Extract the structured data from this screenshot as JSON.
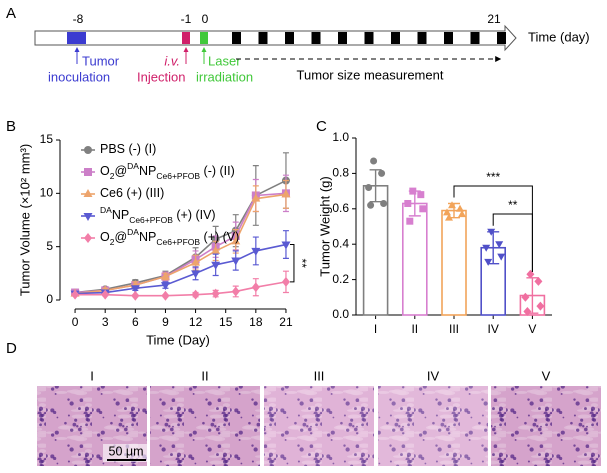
{
  "panel_labels": [
    "A",
    "B",
    "C",
    "D"
  ],
  "timeline": {
    "days": [
      "-8",
      "-1",
      "0",
      "21"
    ],
    "axis_title": "Time (day)",
    "events": [
      {
        "lines": [
          "Tumor",
          "inoculation"
        ]
      },
      {
        "lines": [
          "i.v.",
          "Injection"
        ]
      },
      {
        "lines": [
          "Laser",
          "irradiation"
        ]
      }
    ],
    "measurement": "Tumor size measurement"
  },
  "chart_data": [
    {
      "type": "line",
      "xlabel": "Time (Day)",
      "ylabel": "Tumor Volume (×10² mm³)",
      "x": [
        0,
        3,
        6,
        9,
        12,
        14,
        16,
        18,
        21
      ],
      "xlim": [
        -1.5,
        22
      ],
      "xticks": [
        0,
        3,
        6,
        9,
        12,
        15,
        18,
        21
      ],
      "ylim": [
        0,
        15
      ],
      "yticks": [
        0,
        5,
        10,
        15
      ],
      "series": [
        {
          "name": "PBS (-) (I)",
          "color": "#808080",
          "marker": "circle",
          "values": [
            0.7,
            1.0,
            1.6,
            2.3,
            4.0,
            5.7,
            6.5,
            9.8,
            11.2
          ],
          "errors": [
            0.2,
            0.2,
            0.3,
            0.4,
            0.9,
            1.2,
            1.5,
            2.8,
            2.6
          ]
        },
        {
          "name": "O2@DANPCe6+PFOB (-) (II)",
          "color": "#cc7fc8",
          "marker": "square",
          "values": [
            0.7,
            0.9,
            1.4,
            2.2,
            3.8,
            5.0,
            6.0,
            9.8,
            10.0
          ],
          "errors": [
            0.1,
            0.2,
            0.3,
            0.4,
            0.8,
            1.0,
            1.3,
            1.5,
            1.7
          ]
        },
        {
          "name": "Ce6 (+) (III)",
          "color": "#eda46c",
          "marker": "triangle",
          "values": [
            0.6,
            0.9,
            1.4,
            2.2,
            3.5,
            4.6,
            5.5,
            9.5,
            9.9
          ],
          "errors": [
            0.1,
            0.2,
            0.3,
            0.3,
            0.7,
            0.9,
            1.1,
            1.2,
            1.3
          ]
        },
        {
          "name": "DANPCe6+PFOB (+) (IV)",
          "color": "#5a5ad2",
          "marker": "triangle-down",
          "values": [
            0.6,
            0.7,
            1.1,
            1.4,
            2.5,
            3.3,
            3.7,
            4.6,
            5.2
          ],
          "errors": [
            0.1,
            0.2,
            0.2,
            0.3,
            0.6,
            1.0,
            0.9,
            1.3,
            1.3
          ]
        },
        {
          "name": "O2@DANPCe6+PFOB (+) (V)",
          "color": "#f27ea8",
          "marker": "diamond",
          "values": [
            0.5,
            0.5,
            0.4,
            0.4,
            0.5,
            0.6,
            0.8,
            1.2,
            1.7
          ],
          "errors": [
            0.1,
            0.1,
            0.1,
            0.1,
            0.2,
            0.3,
            0.5,
            0.8,
            1.0
          ]
        }
      ],
      "significance": "**"
    },
    {
      "type": "bar",
      "ylabel": "Tumor Weight (g)",
      "categories": [
        "I",
        "II",
        "III",
        "IV",
        "V"
      ],
      "values": [
        0.73,
        0.63,
        0.59,
        0.38,
        0.11
      ],
      "errors": [
        0.09,
        0.07,
        0.04,
        0.09,
        0.1
      ],
      "colors": [
        "#7f7f7f",
        "#d77fcf",
        "#f2a45a",
        "#5050c8",
        "#f06fa0"
      ],
      "points": [
        [
          0.87,
          0.8,
          0.72,
          0.63,
          0.62
        ],
        [
          0.7,
          0.68,
          0.63,
          0.6,
          0.53
        ],
        [
          0.62,
          0.6,
          0.58,
          0.57,
          0.55
        ],
        [
          0.47,
          0.4,
          0.38,
          0.33,
          0.3
        ],
        [
          0.23,
          0.19,
          0.1,
          0.05,
          0.02
        ]
      ],
      "ylim": [
        0,
        1.0
      ],
      "yticks": [
        {
          "value": 0,
          "label": "0.0"
        },
        0.2,
        0.4,
        0.6,
        0.8,
        {
          "value": 1.0,
          "label": "1.0"
        }
      ],
      "significance": [
        "***",
        "**"
      ]
    }
  ],
  "histology": {
    "groups": [
      "I",
      "II",
      "III",
      "IV",
      "V"
    ],
    "scale_bar": "50 μm"
  }
}
